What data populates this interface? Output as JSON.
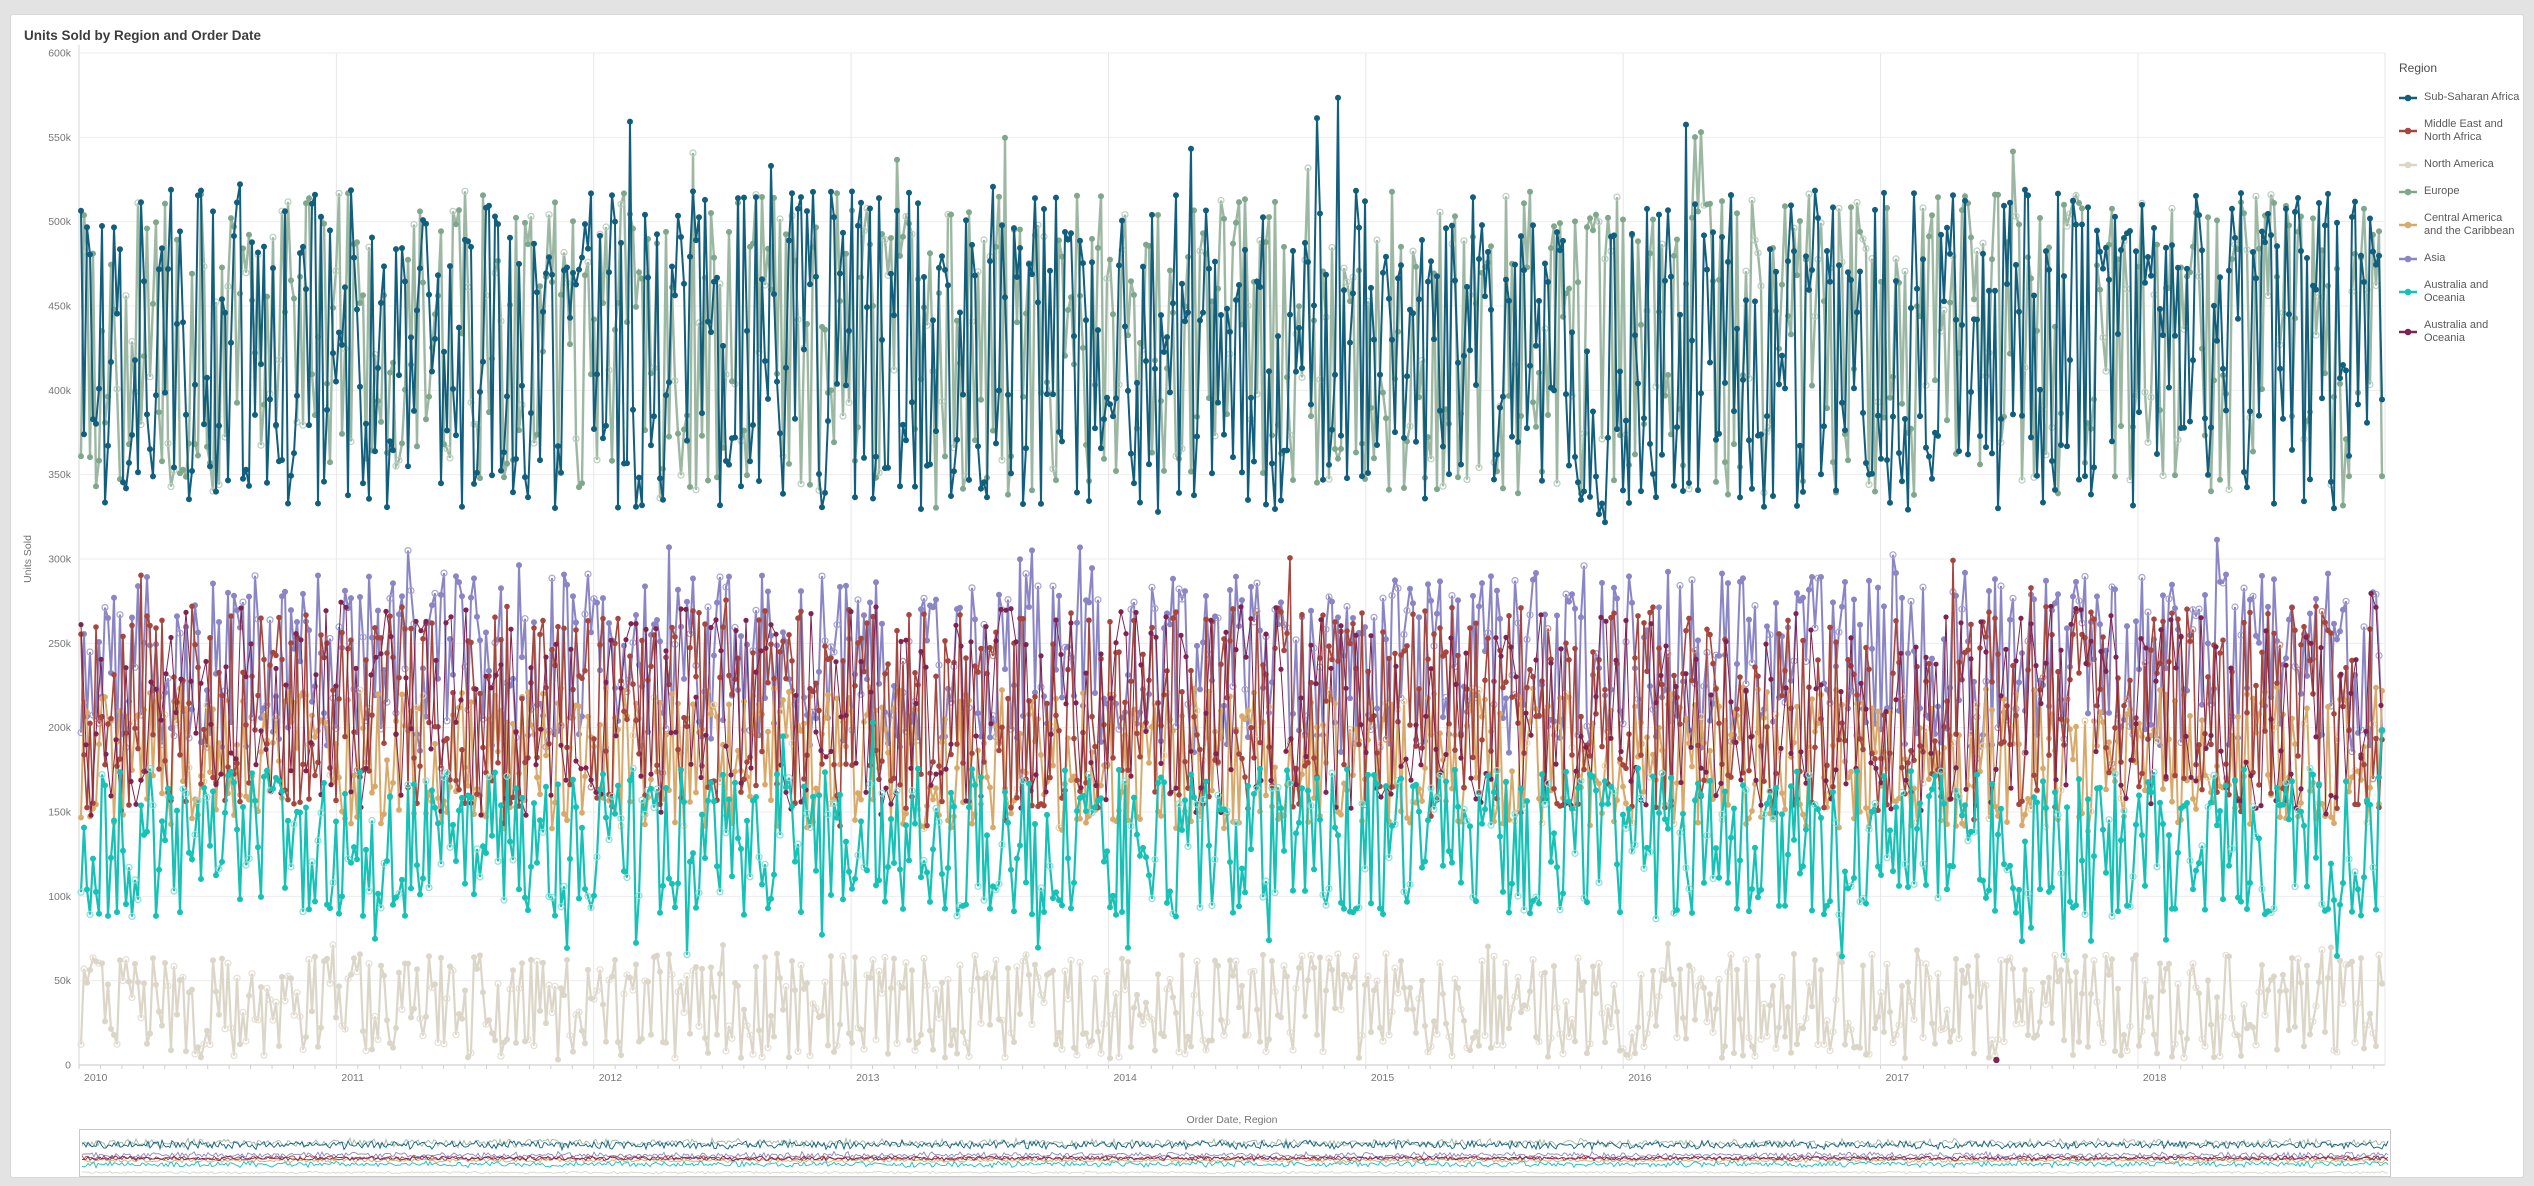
{
  "chart_data": {
    "type": "line",
    "title": "Units Sold by Region and Order Date",
    "xlabel": "Order Date, Region",
    "ylabel": "Units Sold",
    "legend_title": "Region",
    "legend_position": "right",
    "grid": true,
    "x_axis": {
      "tick_labels": [
        "2010",
        "2011",
        "2012",
        "2013",
        "2014",
        "2015",
        "2016",
        "2017",
        "2018"
      ],
      "range_years": [
        2010,
        2018.96
      ],
      "minor_ticks_per_year": 12
    },
    "y_axis": {
      "min": 0,
      "max": 600000,
      "tick_step": 50000,
      "tick_labels": [
        "0",
        "50k",
        "100k",
        "150k",
        "200k",
        "250k",
        "300k",
        "350k",
        "400k",
        "450k",
        "500k",
        "550k",
        "600k"
      ]
    },
    "series": [
      {
        "name": "Sub-Saharan Africa",
        "color": "#115e7d",
        "approx_mean": 424000,
        "approx_range": [
          330000,
          520000
        ],
        "occasional_extremes": [
          315000,
          578000
        ],
        "marker": "dot",
        "density": "dense daily noisy band 2010-2018"
      },
      {
        "name": "Middle East and North Africa",
        "color": "#a5473f",
        "approx_mean": 212000,
        "approx_range": [
          152000,
          272000
        ],
        "occasional_extremes": [
          140000,
          302000
        ],
        "marker": "dot",
        "density": "dense daily noisy band 2010-2018"
      },
      {
        "name": "North America",
        "color": "#dcd6c9",
        "approx_mean": 35000,
        "approx_range": [
          4000,
          66000
        ],
        "occasional_extremes": [
          2000,
          76000
        ],
        "marker": "dot",
        "density": "dense daily noisy band 2010-2018"
      },
      {
        "name": "Europe",
        "color": "#7ea78c",
        "approx_mean": 428000,
        "approx_range": [
          338000,
          518000
        ],
        "occasional_extremes": [
          330000,
          558000
        ],
        "marker": "dot",
        "density": "dense daily noisy band 2010-2018"
      },
      {
        "name": "Central America and the Caribbean",
        "color": "#d9a96b",
        "approx_mean": 182000,
        "approx_range": [
          140000,
          224000
        ],
        "occasional_extremes": [
          136000,
          238000
        ],
        "marker": "dot",
        "density": "dense daily noisy band 2010-2018"
      },
      {
        "name": "Asia",
        "color": "#8a85c4",
        "approx_mean": 240000,
        "approx_range": [
          188000,
          292000
        ],
        "occasional_extremes": [
          182000,
          312000
        ],
        "marker": "dot",
        "density": "dense daily noisy band 2010-2018"
      },
      {
        "name": "Australia and Oceania",
        "color": "#16c1b6",
        "approx_mean": 132000,
        "approx_range": [
          88000,
          176000
        ],
        "occasional_extremes": [
          64000,
          220000
        ],
        "marker": "dot",
        "density": "dense daily noisy band 2010-2018"
      },
      {
        "name": "Australia and Oceania",
        "color": "#7f2351",
        "approx_mean": 210000,
        "approx_range": [
          148000,
          272000
        ],
        "occasional_extremes": [
          146000,
          286000
        ],
        "marker": "dot",
        "density": "sparse scattered points 2010-2018"
      }
    ],
    "outliers": [
      {
        "series_name": "Australia and Oceania",
        "color": "#7f2351",
        "x_year": 2017.45,
        "value": 3000
      }
    ],
    "navigator_minimap": true
  }
}
